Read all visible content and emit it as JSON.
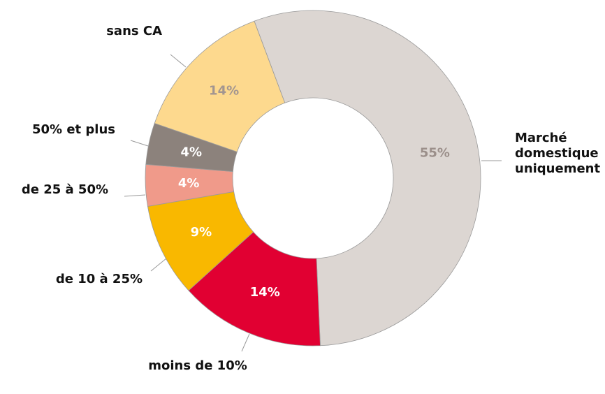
{
  "chart_data": {
    "type": "donut",
    "categories": [
      "Marché domestique uniquement",
      "moins de 10%",
      "de 10 à 25%",
      "de 25 à 50%",
      "50% et plus",
      "sans CA"
    ],
    "values": [
      55,
      14,
      9,
      4,
      4,
      14
    ],
    "value_labels": [
      "55%",
      "14%",
      "9%",
      "4%",
      "4%",
      "14%"
    ],
    "colors": [
      "#dcd6d2",
      "#e10032",
      "#f9b800",
      "#f09a8a",
      "#8c827c",
      "#fdd98e"
    ],
    "value_label_colors": [
      "#9b8f8a",
      "#ffffff",
      "#ffffff",
      "#ffffff",
      "#ffffff",
      "#a29590"
    ]
  }
}
